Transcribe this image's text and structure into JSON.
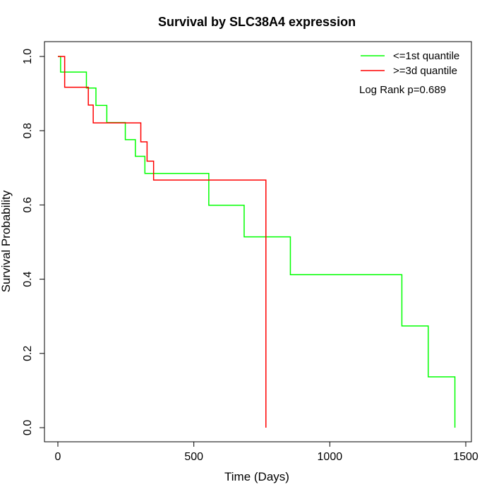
{
  "chart_data": {
    "type": "line",
    "title": "Survival by SLC38A4 expression",
    "xlabel": "Time (Days)",
    "ylabel": "Survival Probability",
    "xlim": [
      0,
      1500
    ],
    "ylim": [
      0,
      1.0
    ],
    "xticks": [
      0,
      500,
      1000,
      1500
    ],
    "xtick_labels": [
      "0",
      "500",
      "1000",
      "1500"
    ],
    "yticks": [
      0,
      0.2,
      0.4,
      0.6,
      0.8,
      1.0
    ],
    "ytick_labels": [
      "0.0",
      "0.2",
      "0.4",
      "0.6",
      "0.8",
      "1.0"
    ],
    "grid": false,
    "legend_position": "top-right",
    "annotation": "Log Rank p=0.689",
    "series": [
      {
        "name": "<=1st quantile",
        "color": "#00ff00",
        "step": true,
        "x": [
          0,
          10,
          105,
          140,
          180,
          248,
          285,
          320,
          555,
          685,
          855,
          1265,
          1362,
          1460
        ],
        "y": [
          1.0,
          0.958,
          0.915,
          0.868,
          0.822,
          0.776,
          0.731,
          0.685,
          0.599,
          0.514,
          0.412,
          0.274,
          0.137,
          0.0
        ]
      },
      {
        "name": ">=3d quantile",
        "color": "#ff0000",
        "step": true,
        "x": [
          0,
          25,
          112,
          130,
          305,
          328,
          352,
          765
        ],
        "y": [
          1.0,
          0.917,
          0.869,
          0.821,
          0.77,
          0.718,
          0.667,
          0.0
        ]
      }
    ]
  }
}
